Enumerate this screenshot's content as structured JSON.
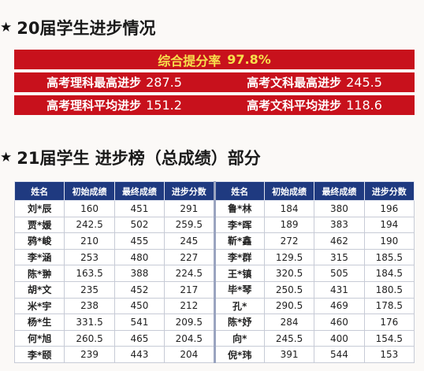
{
  "section1": {
    "star": "★",
    "title": "20届学生进步情况",
    "rate_label": "综合提分率",
    "rate_value": "97.8%",
    "science_high_label": "高考理科最高进步",
    "science_high_value": "287.5",
    "liberal_high_label": "高考文科最高进步",
    "liberal_high_value": "245.5",
    "science_avg_label": "高考理科平均进步",
    "science_avg_value": "151.2",
    "liberal_avg_label": "高考文科平均进步",
    "liberal_avg_value": "118.6"
  },
  "section2": {
    "star": "★",
    "title": "21届学生 进步榜（总成绩）部分"
  },
  "table": {
    "headers": [
      "姓名",
      "初始成绩",
      "最终成绩",
      "进步分数",
      "姓名",
      "初始成绩",
      "最终成绩",
      "进步分数"
    ],
    "rows": [
      [
        "刘*辰",
        "160",
        "451",
        "291",
        "鲁*林",
        "184",
        "380",
        "196"
      ],
      [
        "贾*媛",
        "242.5",
        "502",
        "259.5",
        "李*晖",
        "189",
        "383",
        "194"
      ],
      [
        "鸦*峻",
        "210",
        "455",
        "245",
        "靳*鑫",
        "272",
        "462",
        "190"
      ],
      [
        "李*涵",
        "253",
        "480",
        "227",
        "李*群",
        "129.5",
        "315",
        "185.5"
      ],
      [
        "陈*翀",
        "163.5",
        "388",
        "224.5",
        "王*镇",
        "320.5",
        "505",
        "184.5"
      ],
      [
        "胡*文",
        "235",
        "452",
        "217",
        "毕*琴",
        "250.5",
        "431",
        "180.5"
      ],
      [
        "米*宇",
        "238",
        "450",
        "212",
        "孔*",
        "290.5",
        "469",
        "178.5"
      ],
      [
        "杨*生",
        "331.5",
        "541",
        "209.5",
        "陈*妤",
        "284",
        "460",
        "176"
      ],
      [
        "何*旭",
        "260.5",
        "465",
        "204.5",
        "向*",
        "245.5",
        "400",
        "154.5"
      ],
      [
        "李*颐",
        "239",
        "443",
        "204",
        "倪*玮",
        "391",
        "544",
        "153"
      ]
    ]
  }
}
